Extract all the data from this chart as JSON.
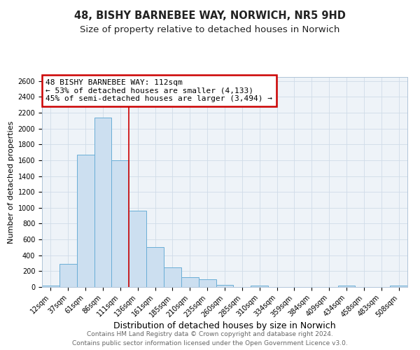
{
  "title": "48, BISHY BARNEBEE WAY, NORWICH, NR5 9HD",
  "subtitle": "Size of property relative to detached houses in Norwich",
  "xlabel": "Distribution of detached houses by size in Norwich",
  "ylabel": "Number of detached properties",
  "bin_labels": [
    "12sqm",
    "37sqm",
    "61sqm",
    "86sqm",
    "111sqm",
    "136sqm",
    "161sqm",
    "185sqm",
    "210sqm",
    "235sqm",
    "260sqm",
    "285sqm",
    "310sqm",
    "334sqm",
    "359sqm",
    "384sqm",
    "409sqm",
    "434sqm",
    "458sqm",
    "483sqm",
    "508sqm"
  ],
  "bar_heights": [
    20,
    295,
    1670,
    2140,
    1600,
    960,
    505,
    250,
    120,
    95,
    30,
    0,
    18,
    0,
    0,
    0,
    0,
    20,
    0,
    0,
    18
  ],
  "bar_color": "#ccdff0",
  "bar_edge_color": "#6aaed6",
  "grid_color": "#d0dce8",
  "plot_bg_color": "#eef3f8",
  "fig_bg_color": "#ffffff",
  "vline_x_idx": 4,
  "vline_color": "#cc0000",
  "annotation_text": "48 BISHY BARNEBEE WAY: 112sqm\n← 53% of detached houses are smaller (4,133)\n45% of semi-detached houses are larger (3,494) →",
  "annotation_box_color": "#ffffff",
  "annotation_border_color": "#cc0000",
  "footer_line1": "Contains HM Land Registry data © Crown copyright and database right 2024.",
  "footer_line2": "Contains public sector information licensed under the Open Government Licence v3.0.",
  "ylim": [
    0,
    2650
  ],
  "yticks": [
    0,
    200,
    400,
    600,
    800,
    1000,
    1200,
    1400,
    1600,
    1800,
    2000,
    2200,
    2400,
    2600
  ],
  "title_fontsize": 10.5,
  "subtitle_fontsize": 9.5,
  "xlabel_fontsize": 9,
  "ylabel_fontsize": 8,
  "tick_fontsize": 7,
  "annotation_fontsize": 8,
  "footer_fontsize": 6.5
}
